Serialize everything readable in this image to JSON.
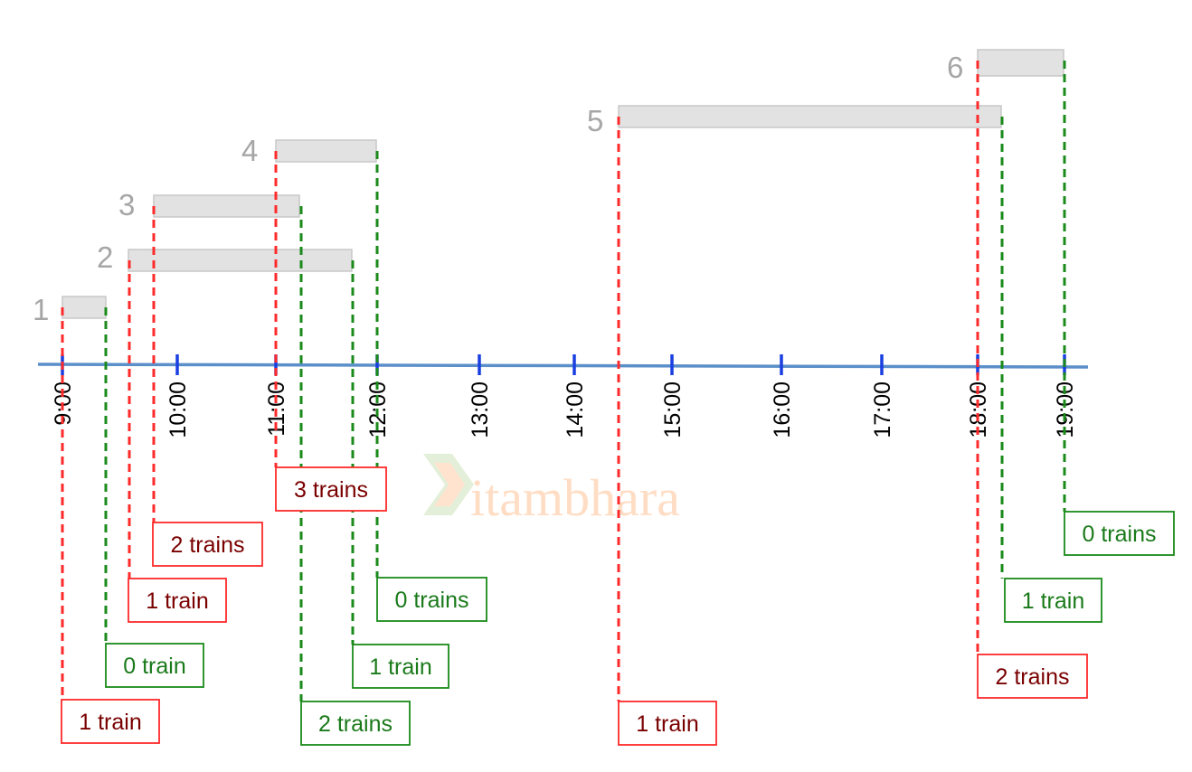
{
  "axis": {
    "labels": [
      "9:00",
      "10:00",
      "11:00",
      "12:00",
      "13:00",
      "14:00",
      "15:00",
      "16:00",
      "17:00",
      "18:00",
      "19:00"
    ]
  },
  "trains": [
    {
      "label": "1",
      "arrival_count": "1 train",
      "departure_count": "0 train"
    },
    {
      "label": "2",
      "arrival_count": "1 train",
      "departure_count": "1 train"
    },
    {
      "label": "3",
      "arrival_count": "2 trains",
      "departure_count": "2 trains"
    },
    {
      "label": "4",
      "arrival_count": "3 trains",
      "departure_count": "0 trains"
    },
    {
      "label": "5",
      "arrival_count": "1 train",
      "departure_count": "1 train"
    },
    {
      "label": "6",
      "arrival_count": "2 trains",
      "departure_count": "0 trains"
    }
  ],
  "watermark": {
    "text": "itambhara"
  },
  "colors": {
    "arrival": "#ff2a2a",
    "arrival_text": "#7a0000",
    "departure": "#1a8a1a",
    "departure_text": "#1a7a1a",
    "axis": "#5b8fc9",
    "tick": "#1a3fe0",
    "bar_fill": "#e2e2e2",
    "bar_stroke": "#c8c8c8",
    "number": "#a6a6a6"
  }
}
